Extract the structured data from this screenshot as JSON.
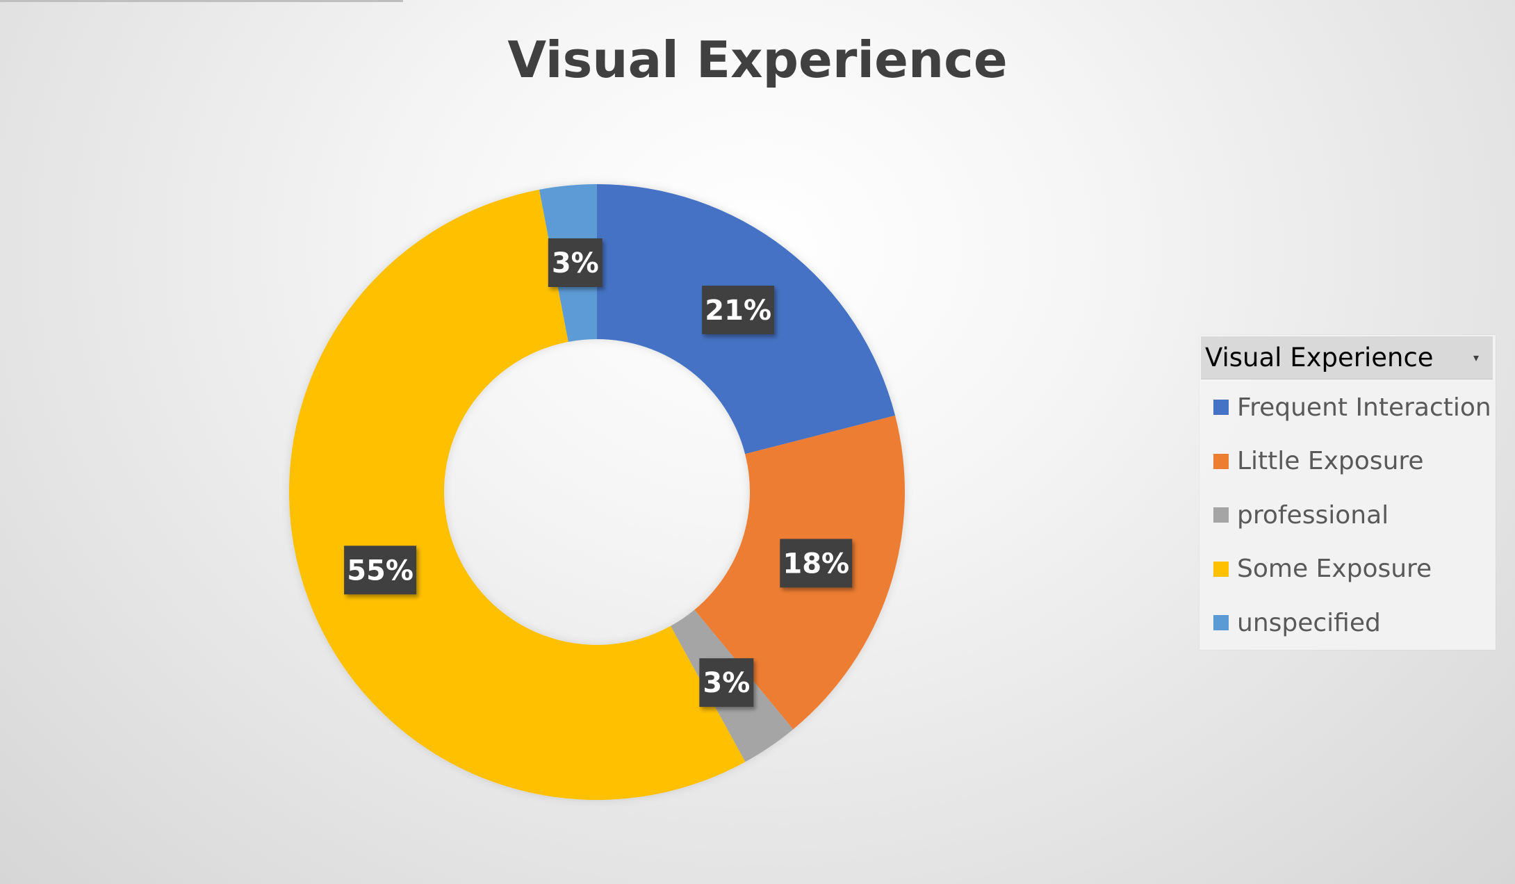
{
  "chart_data": {
    "type": "pie",
    "title": "Visual Experience",
    "style": "donut",
    "slices": [
      {
        "label": "Frequent Interaction",
        "value": 21,
        "data_label": "21%",
        "color": "#4472C4"
      },
      {
        "label": "Little Exposure",
        "value": 18,
        "data_label": "18%",
        "color": "#ED7D31"
      },
      {
        "label": "professional",
        "value": 3,
        "data_label": "3%",
        "color": "#A5A5A5"
      },
      {
        "label": "Some Exposure",
        "value": 55,
        "data_label": "55%",
        "color": "#FFC000"
      },
      {
        "label": "unspecified",
        "value": 3,
        "data_label": "3%",
        "color": "#5B9BD5"
      }
    ],
    "legend": {
      "title": "Visual Experience",
      "position": "right",
      "dropdown_icon": "dropdown-arrow-icon"
    },
    "data_label_background": "#404040"
  }
}
